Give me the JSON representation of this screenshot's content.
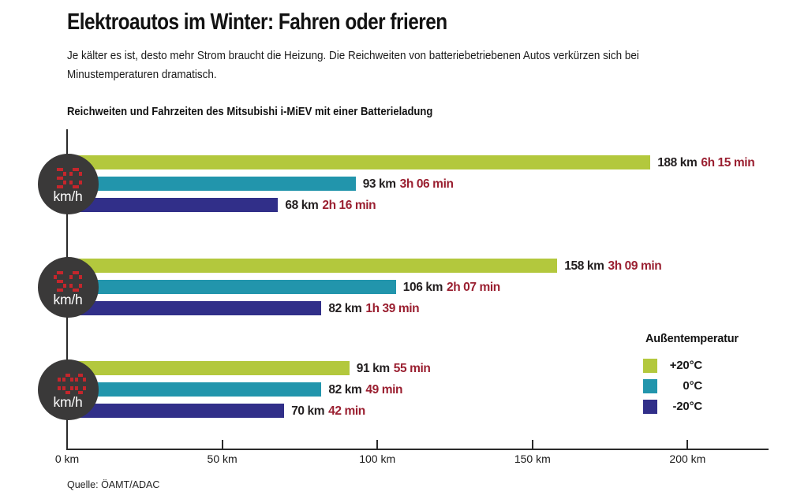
{
  "header": {
    "title": "Elektroautos im Winter: Fahren oder frieren",
    "subtitle_line1": "Je kälter es ist, desto mehr Strom braucht die Heizung. Die Reichweiten von batteriebetriebenen Autos verkürzen sich bei",
    "subtitle_line2": "Minustemperaturen dramatisch."
  },
  "chart_data": {
    "type": "bar",
    "orientation": "horizontal",
    "title": "Reichweiten und Fahrzeiten des Mitsubishi i-MiEV mit einer Batterieladung",
    "legend_title": "Außentemperatur",
    "legend_position": "right",
    "categories": [
      {
        "speed": "30",
        "unit": "km/h"
      },
      {
        "speed": "50",
        "unit": "km/h"
      },
      {
        "speed": "100",
        "unit": "km/h"
      }
    ],
    "series": [
      {
        "name": "+20°C",
        "color": "#b3c83d",
        "km": [
          188,
          158,
          91
        ],
        "time": [
          "6h 15 min",
          "3h 09 min",
          "55 min"
        ]
      },
      {
        "name": "0°C",
        "color": "#2295ac",
        "km": [
          93,
          106,
          82
        ],
        "time": [
          "3h 06 min",
          "2h 07 min",
          "49 min"
        ]
      },
      {
        "name": "-20°C",
        "color": "#312f89",
        "km": [
          68,
          82,
          70
        ],
        "time": [
          "2h 16 min",
          "1h 39 min",
          "42 min"
        ]
      }
    ],
    "x_ticks": [
      {
        "km": 0,
        "label": "0 km"
      },
      {
        "km": 50,
        "label": "50 km"
      },
      {
        "km": 100,
        "label": "100 km"
      },
      {
        "km": 150,
        "label": "150 km"
      },
      {
        "km": 200,
        "label": "200 km"
      }
    ],
    "xlim_km": [
      0,
      226
    ],
    "xlabel": "",
    "ylabel": "",
    "grid": false,
    "source": "Quelle: ÖAMT/ADAC"
  },
  "colors": {
    "km_text": "#231f20",
    "time_text": "#9a1f30",
    "digital_display": "#c5262c",
    "badge_background": "#3a3939",
    "badge_unit_text": "#ffffff",
    "axis_line": "#2b2b2b",
    "tick_label_text": "#1a1a1a"
  }
}
